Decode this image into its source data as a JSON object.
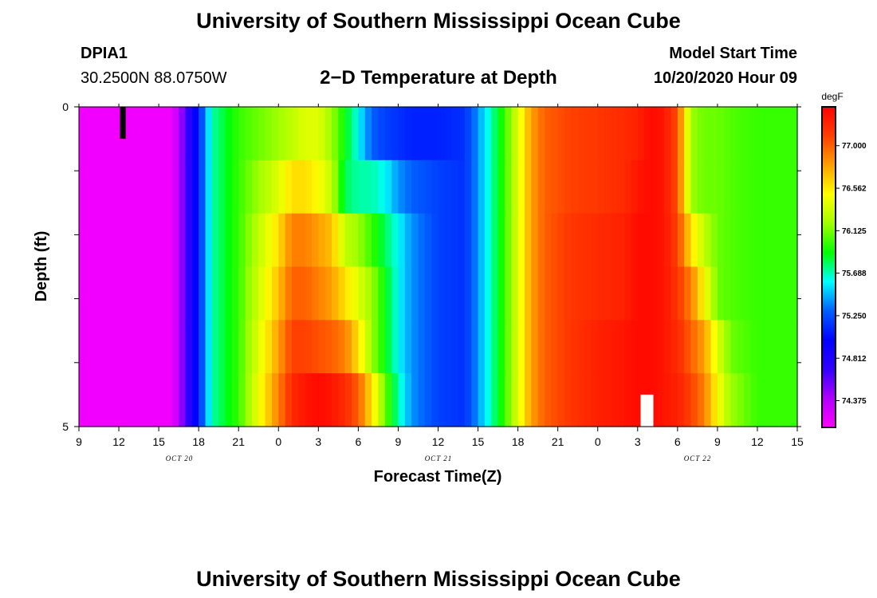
{
  "page": {
    "top_title": "University of Southern Mississippi Ocean Cube",
    "bottom_title": "University of Southern Mississippi Ocean Cube",
    "station_id": "DPIA1",
    "station_coords": "30.2500N 88.0750W",
    "plot_title": "2−D Temperature at Depth",
    "model_label": "Model Start Time",
    "model_time": "10/20/2020 Hour 09"
  },
  "chart_data": {
    "type": "heatmap",
    "title": "2−D Temperature at Depth",
    "xlabel": "Forecast Time(Z)",
    "ylabel": "Depth (ft)",
    "x_tick_labels": [
      "9",
      "12",
      "15",
      "18",
      "21",
      "0",
      "3",
      "6",
      "9",
      "12",
      "15",
      "18",
      "21",
      "0",
      "3",
      "6",
      "9",
      "12",
      "15"
    ],
    "x_hours": [
      9,
      12,
      15,
      18,
      21,
      24,
      27,
      30,
      33,
      36,
      39,
      42,
      45,
      48,
      51,
      54,
      57,
      60,
      63
    ],
    "x_range_hours": [
      9,
      63
    ],
    "date_labels": [
      {
        "text": "OCT 20",
        "hour": 15
      },
      {
        "text": "OCT 21",
        "hour": 54
      },
      {
        "text": "OCT 22",
        "hour": 93
      }
    ],
    "y_tick_labels": [
      "0",
      "5"
    ],
    "y_range": [
      0,
      5
    ],
    "y_minor_ticks": [
      1,
      2,
      3,
      4
    ],
    "colorbar": {
      "units": "degF",
      "labels": [
        "77.000",
        "76.562",
        "76.125",
        "75.688",
        "75.250",
        "74.812",
        "74.375"
      ],
      "levels": [
        77.0,
        76.562,
        76.125,
        75.688,
        75.25,
        74.812,
        74.375
      ],
      "range": [
        74.1,
        77.4
      ],
      "colors": [
        "#ff00ff",
        "#b000ff",
        "#3000ff",
        "#0000ff",
        "#0060ff",
        "#00ffff",
        "#00ff00",
        "#a0ff00",
        "#ffff00",
        "#ffa000",
        "#ff4000",
        "#ff0000"
      ]
    },
    "time_nodes": [
      9,
      16,
      17,
      18,
      19,
      21,
      24,
      25,
      26,
      27,
      28,
      29,
      30,
      31,
      32,
      33,
      34,
      36,
      38,
      39,
      40,
      41,
      42,
      43,
      44,
      46,
      48,
      50,
      51,
      52,
      53,
      54,
      55,
      56,
      57,
      58,
      60,
      63
    ],
    "depth_layers": [
      [
        74.15,
        74.15,
        74.6,
        75.1,
        75.7,
        76.0,
        76.2,
        76.3,
        76.4,
        76.4,
        76.2,
        75.9,
        75.6,
        75.3,
        75.2,
        75.15,
        75.1,
        75.1,
        75.15,
        75.4,
        75.7,
        76.0,
        76.4,
        76.8,
        77.0,
        77.1,
        77.15,
        77.2,
        77.25,
        77.35,
        77.3,
        77.05,
        76.2,
        76.1,
        76.1,
        76.05,
        76.0,
        76.0
      ],
      [
        74.15,
        74.15,
        74.6,
        75.1,
        75.7,
        76.0,
        76.4,
        76.6,
        76.6,
        76.5,
        76.3,
        75.8,
        75.7,
        75.7,
        75.6,
        75.4,
        75.3,
        75.2,
        75.15,
        75.4,
        75.7,
        76.0,
        76.4,
        76.8,
        77.0,
        77.1,
        77.15,
        77.2,
        77.3,
        77.35,
        77.3,
        77.05,
        76.2,
        76.1,
        76.1,
        76.05,
        76.0,
        76.0
      ],
      [
        74.15,
        74.15,
        74.6,
        75.1,
        75.7,
        76.0,
        76.6,
        76.9,
        76.9,
        76.8,
        76.7,
        76.3,
        76.2,
        76.0,
        75.8,
        75.6,
        75.4,
        75.2,
        75.15,
        75.4,
        75.7,
        76.0,
        76.4,
        76.8,
        77.0,
        77.15,
        77.2,
        77.25,
        77.35,
        77.35,
        77.3,
        77.1,
        76.6,
        76.3,
        76.1,
        76.05,
        76.0,
        76.0
      ],
      [
        74.15,
        74.15,
        74.6,
        75.1,
        75.7,
        76.0,
        76.7,
        77.0,
        77.0,
        76.9,
        76.8,
        76.6,
        76.4,
        76.2,
        75.9,
        75.6,
        75.4,
        75.2,
        75.15,
        75.4,
        75.7,
        76.0,
        76.4,
        76.8,
        77.0,
        77.15,
        77.2,
        77.25,
        77.35,
        77.35,
        77.3,
        77.15,
        76.9,
        76.5,
        76.1,
        76.05,
        76.0,
        76.0
      ],
      [
        74.15,
        74.15,
        74.6,
        75.1,
        75.7,
        76.0,
        76.8,
        77.1,
        77.1,
        77.05,
        77.0,
        76.9,
        76.6,
        76.2,
        75.9,
        75.6,
        75.4,
        75.2,
        75.15,
        75.4,
        75.7,
        76.0,
        76.4,
        76.8,
        77.0,
        77.15,
        77.25,
        77.3,
        77.35,
        77.35,
        77.3,
        77.2,
        77.0,
        76.8,
        76.4,
        76.1,
        76.0,
        76.0
      ],
      [
        74.15,
        74.15,
        74.6,
        75.1,
        75.7,
        76.0,
        76.9,
        77.2,
        77.3,
        77.35,
        77.3,
        77.2,
        77.0,
        76.6,
        76.1,
        75.7,
        75.4,
        75.2,
        75.15,
        75.4,
        75.7,
        76.0,
        76.4,
        76.8,
        77.0,
        77.15,
        77.25,
        77.3,
        77.35,
        77.35,
        77.3,
        77.25,
        77.1,
        76.9,
        76.5,
        76.2,
        76.0,
        76.0
      ]
    ],
    "markers": [
      {
        "color": "#000000",
        "hour": 12.3,
        "depth": [
          0,
          0.5
        ]
      },
      {
        "color": "#ffffff",
        "hour": 51.7,
        "depth": [
          4.5,
          5
        ]
      }
    ]
  }
}
